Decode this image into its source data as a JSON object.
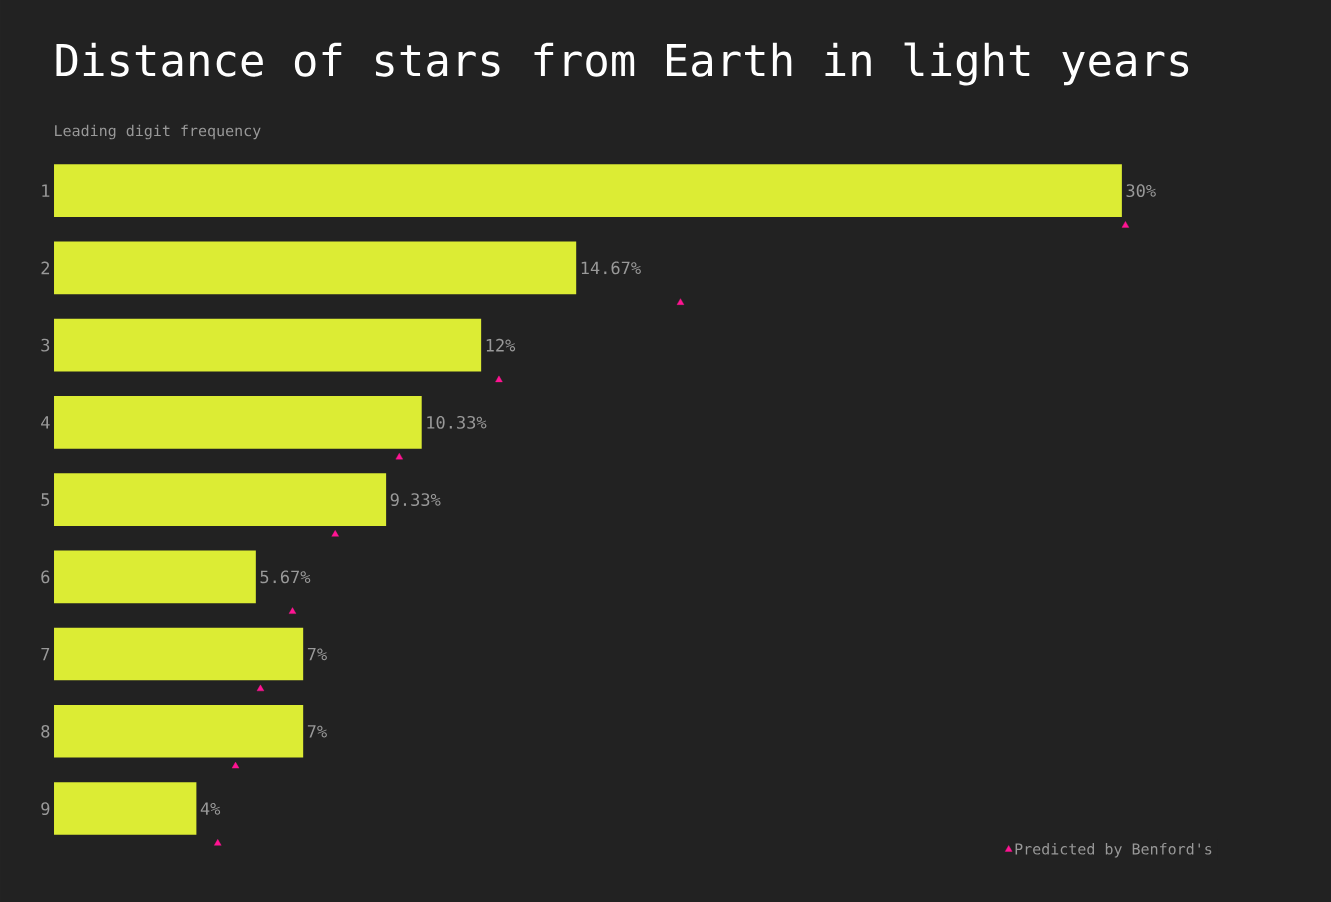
{
  "chart_data": {
    "type": "bar",
    "orientation": "horizontal",
    "title": "Distance of stars from Earth in light years",
    "subtitle": "Leading digit frequency",
    "categories": [
      "1",
      "2",
      "3",
      "4",
      "5",
      "6",
      "7",
      "8",
      "9"
    ],
    "legend": "bottom right",
    "series": [
      {
        "color": "#dcec34",
        "values": [
          30,
          14.67,
          12,
          10.33,
          9.33,
          5.67,
          7,
          7,
          4
        ],
        "value_labels": [
          "30%",
          "14.67%",
          "12%",
          "10.33%",
          "9.33%",
          "5.67%",
          "7%",
          "7%",
          "4%"
        ]
      },
      {
        "type": "scatter",
        "name": "Predicted by Benford's",
        "color": "#ff1493",
        "marker": "triangle",
        "values": [
          30.1,
          17.6,
          12.5,
          9.7,
          7.9,
          6.7,
          5.8,
          5.1,
          4.6
        ]
      }
    ]
  }
}
